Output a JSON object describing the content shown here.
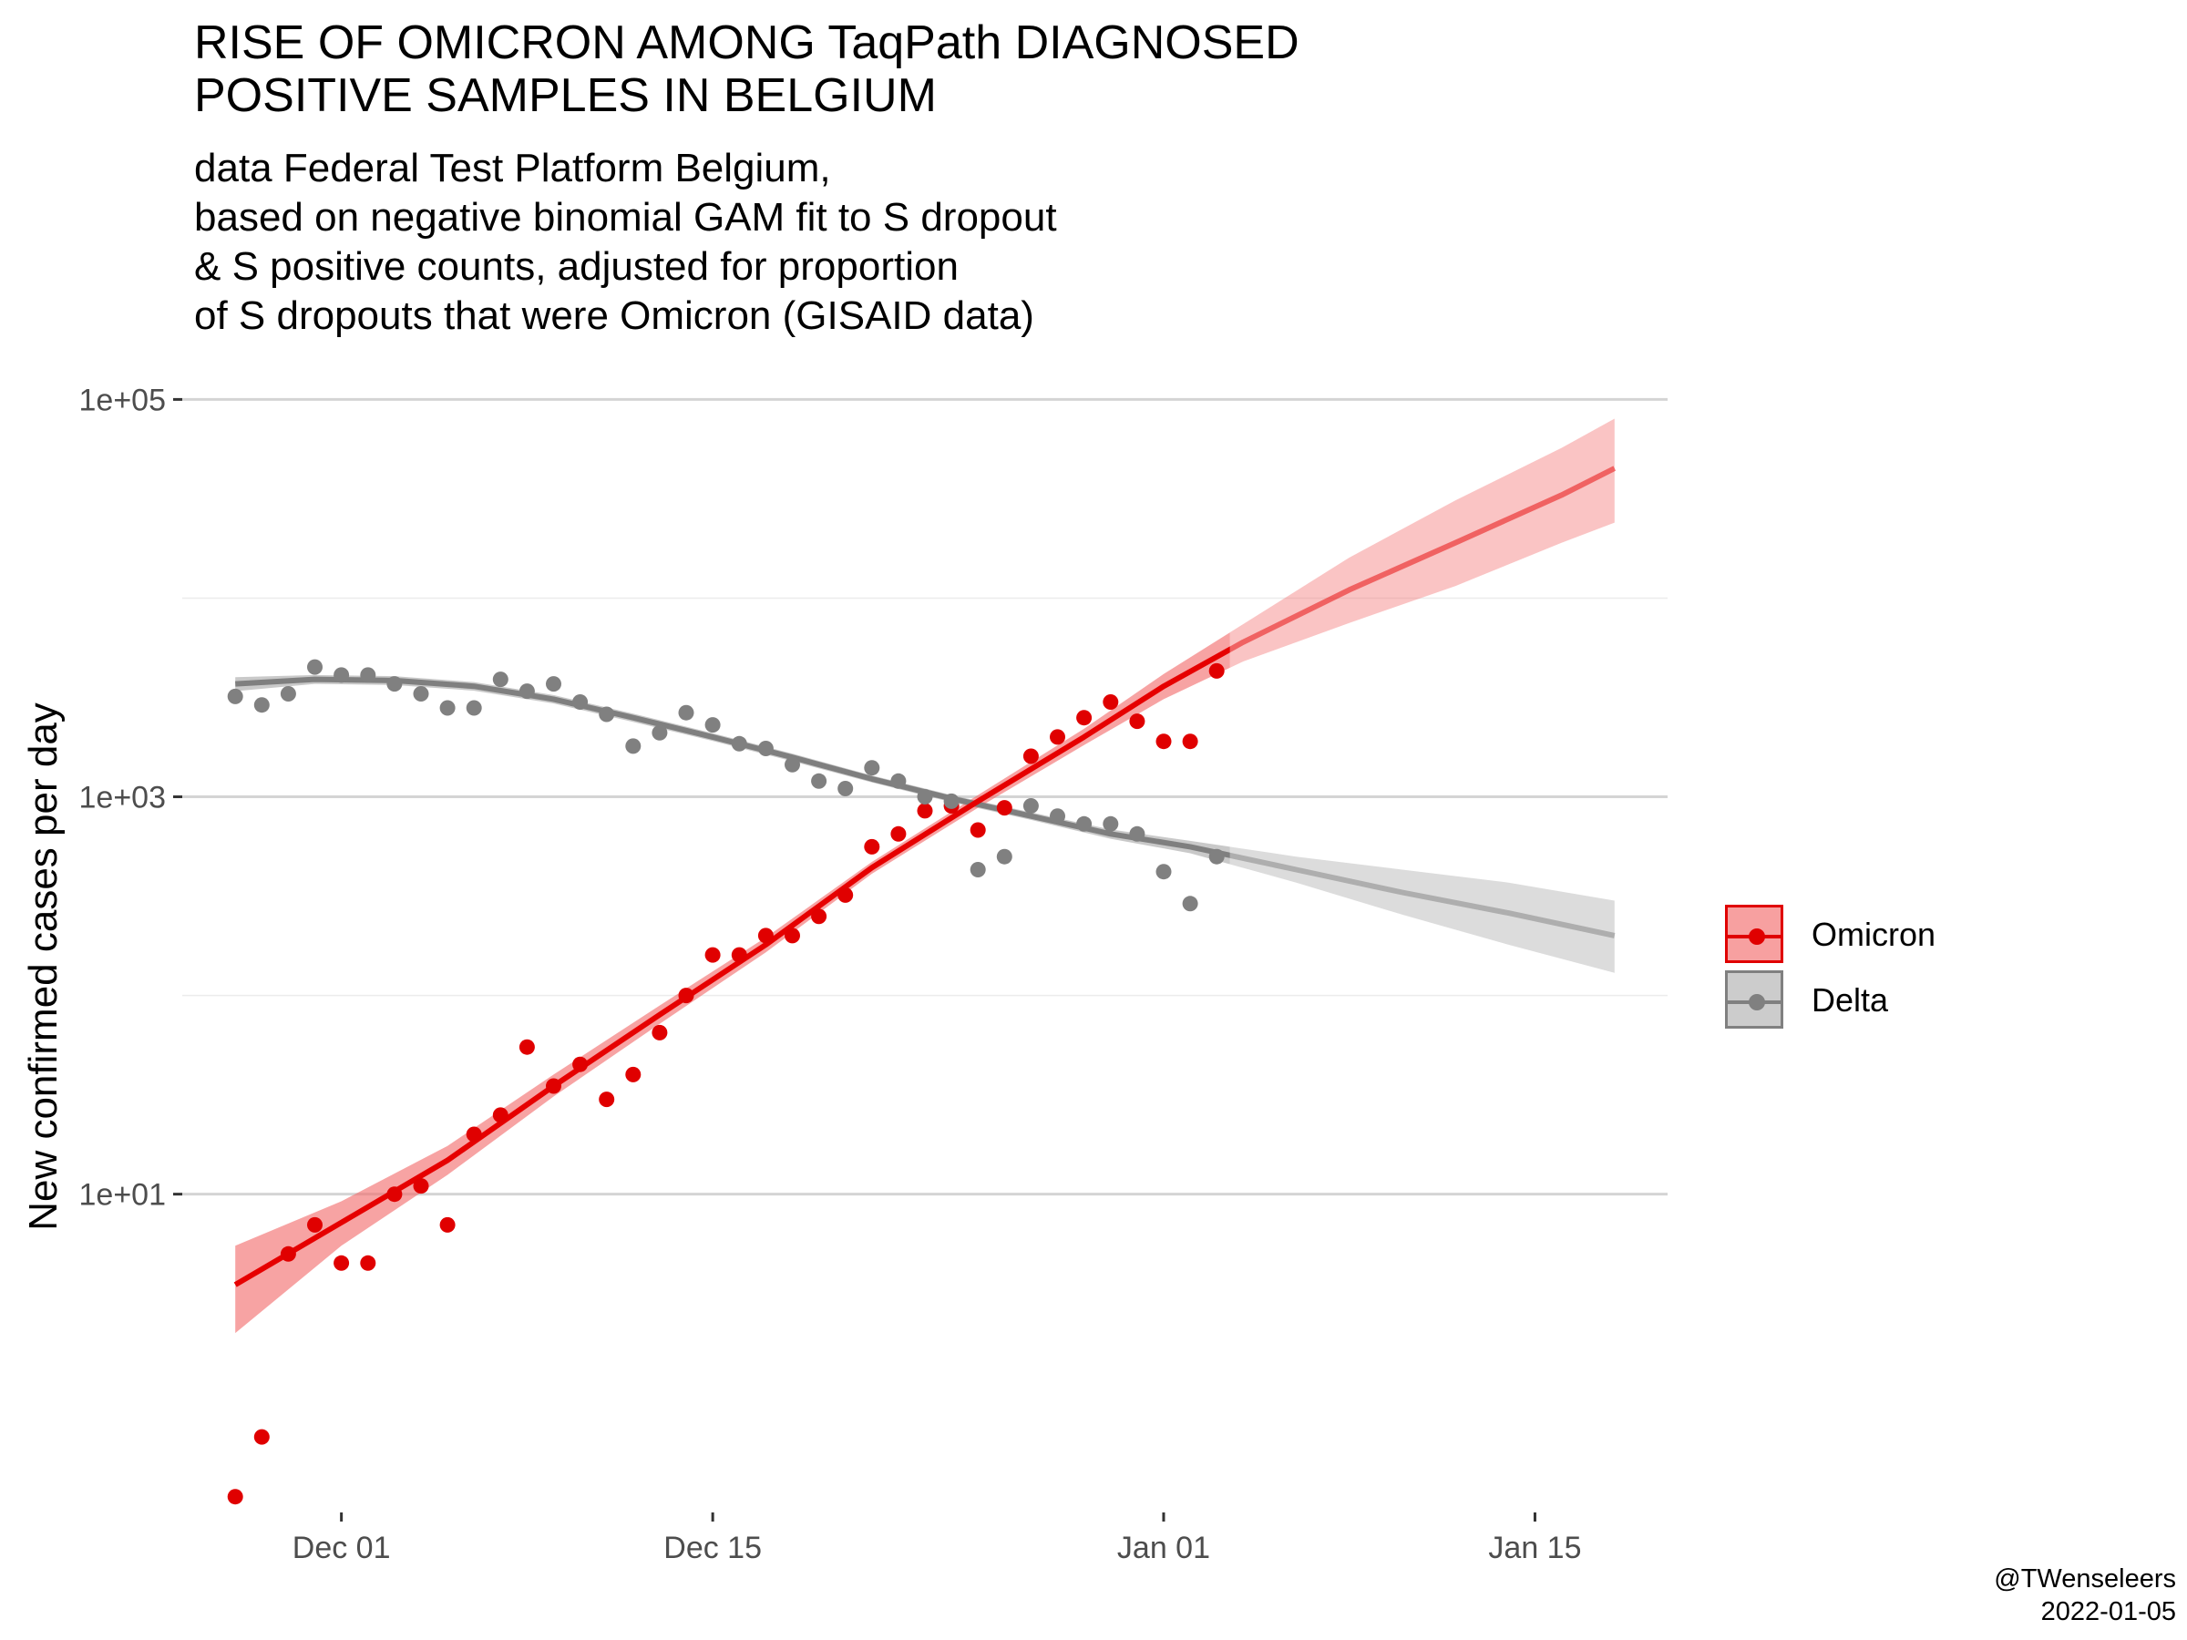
{
  "chart_data": {
    "type": "line",
    "title_lines": [
      "RISE OF OMICRON AMONG TaqPath DIAGNOSED",
      "POSITIVE SAMPLES IN BELGIUM"
    ],
    "subtitle_lines": [
      "data Federal Test Platform Belgium,",
      "based on negative binomial GAM fit to S dropout",
      "& S positive counts, adjusted for proportion",
      "of S dropouts that were Omicron (GISAID data)"
    ],
    "ylabel": "New confirmed cases per day",
    "y_scale": "log10",
    "y_range": [
      0.25,
      150000
    ],
    "y_ticks": [
      {
        "value": 10,
        "label": "1e+01"
      },
      {
        "value": 1000,
        "label": "1e+03"
      },
      {
        "value": 100000,
        "label": "1e+05"
      }
    ],
    "x_range": [
      "2021-11-25",
      "2022-01-20"
    ],
    "x_ticks": [
      {
        "value": "2021-12-01",
        "label": "Dec 01"
      },
      {
        "value": "2021-12-15",
        "label": "Dec 15"
      },
      {
        "value": "2022-01-01",
        "label": "Jan 01"
      },
      {
        "value": "2022-01-15",
        "label": "Jan 15"
      }
    ],
    "grid": "horizontal major and minor",
    "legend_position": "right",
    "series": [
      {
        "name": "Omicron",
        "color": "#e00000",
        "points": [
          [
            "2021-11-27",
            0.3
          ],
          [
            "2021-11-28",
            0.6
          ],
          [
            "2021-11-29",
            5
          ],
          [
            "2021-11-30",
            7
          ],
          [
            "2021-12-01",
            4.5
          ],
          [
            "2021-12-02",
            4.5
          ],
          [
            "2021-12-03",
            10
          ],
          [
            "2021-12-04",
            11
          ],
          [
            "2021-12-05",
            7
          ],
          [
            "2021-12-06",
            20
          ],
          [
            "2021-12-07",
            25
          ],
          [
            "2021-12-08",
            55
          ],
          [
            "2021-12-09",
            35
          ],
          [
            "2021-12-10",
            45
          ],
          [
            "2021-12-11",
            30
          ],
          [
            "2021-12-12",
            40
          ],
          [
            "2021-12-13",
            65
          ],
          [
            "2021-12-14",
            100
          ],
          [
            "2021-12-15",
            160
          ],
          [
            "2021-12-16",
            160
          ],
          [
            "2021-12-17",
            200
          ],
          [
            "2021-12-18",
            200
          ],
          [
            "2021-12-19",
            250
          ],
          [
            "2021-12-20",
            320
          ],
          [
            "2021-12-21",
            560
          ],
          [
            "2021-12-22",
            650
          ],
          [
            "2021-12-23",
            850
          ],
          [
            "2021-12-24",
            900
          ],
          [
            "2021-12-25",
            680
          ],
          [
            "2021-12-26",
            880
          ],
          [
            "2021-12-27",
            1600
          ],
          [
            "2021-12-28",
            2000
          ],
          [
            "2021-12-29",
            2500
          ],
          [
            "2021-12-30",
            3000
          ],
          [
            "2021-12-31",
            2400
          ],
          [
            "2022-01-01",
            1900
          ],
          [
            "2022-01-02",
            1900
          ],
          [
            "2022-01-03",
            4300
          ]
        ],
        "fit": [
          [
            "2021-11-27",
            3.5
          ],
          [
            "2021-12-01",
            7.2
          ],
          [
            "2021-12-05",
            14.8
          ],
          [
            "2021-12-09",
            35
          ],
          [
            "2021-12-13",
            80
          ],
          [
            "2021-12-17",
            180
          ],
          [
            "2021-12-21",
            440
          ],
          [
            "2021-12-25",
            950
          ],
          [
            "2021-12-29",
            2000
          ],
          [
            "2022-01-01",
            3600
          ],
          [
            "2022-01-04",
            6000
          ],
          [
            "2022-01-08",
            11000
          ],
          [
            "2022-01-12",
            19000
          ],
          [
            "2022-01-16",
            33000
          ],
          [
            "2022-01-18",
            45000
          ]
        ],
        "fit_lower": [
          [
            "2021-11-27",
            2.0
          ],
          [
            "2021-12-01",
            5.5
          ],
          [
            "2021-12-05",
            12.5
          ],
          [
            "2021-12-09",
            31
          ],
          [
            "2021-12-13",
            72
          ],
          [
            "2021-12-17",
            165
          ],
          [
            "2021-12-21",
            410
          ],
          [
            "2021-12-25",
            880
          ],
          [
            "2021-12-29",
            1820
          ],
          [
            "2022-01-01",
            3100
          ],
          [
            "2022-01-04",
            4800
          ],
          [
            "2022-01-08",
            7500
          ],
          [
            "2022-01-12",
            11500
          ],
          [
            "2022-01-16",
            19000
          ],
          [
            "2022-01-18",
            24000
          ]
        ],
        "fit_upper": [
          [
            "2021-11-27",
            5.5
          ],
          [
            "2021-12-01",
            9.2
          ],
          [
            "2021-12-05",
            17.5
          ],
          [
            "2021-12-09",
            40
          ],
          [
            "2021-12-13",
            89
          ],
          [
            "2021-12-17",
            196
          ],
          [
            "2021-12-21",
            470
          ],
          [
            "2021-12-25",
            1020
          ],
          [
            "2021-12-29",
            2200
          ],
          [
            "2022-01-01",
            4150
          ],
          [
            "2022-01-04",
            7400
          ],
          [
            "2022-01-08",
            16000
          ],
          [
            "2022-01-12",
            31000
          ],
          [
            "2022-01-16",
            57000
          ],
          [
            "2022-01-18",
            80000
          ]
        ]
      },
      {
        "name": "Delta",
        "color": "#808080",
        "points": [
          [
            "2021-11-27",
            3200
          ],
          [
            "2021-11-28",
            2900
          ],
          [
            "2021-11-29",
            3300
          ],
          [
            "2021-11-30",
            4500
          ],
          [
            "2021-12-01",
            4100
          ],
          [
            "2021-12-02",
            4100
          ],
          [
            "2021-12-03",
            3700
          ],
          [
            "2021-12-04",
            3300
          ],
          [
            "2021-12-05",
            2800
          ],
          [
            "2021-12-06",
            2800
          ],
          [
            "2021-12-07",
            3900
          ],
          [
            "2021-12-08",
            3400
          ],
          [
            "2021-12-09",
            3700
          ],
          [
            "2021-12-10",
            3000
          ],
          [
            "2021-12-11",
            2600
          ],
          [
            "2021-12-12",
            1800
          ],
          [
            "2021-12-13",
            2100
          ],
          [
            "2021-12-14",
            2650
          ],
          [
            "2021-12-15",
            2300
          ],
          [
            "2021-12-16",
            1850
          ],
          [
            "2021-12-17",
            1750
          ],
          [
            "2021-12-18",
            1450
          ],
          [
            "2021-12-19",
            1200
          ],
          [
            "2021-12-20",
            1100
          ],
          [
            "2021-12-21",
            1400
          ],
          [
            "2021-12-22",
            1200
          ],
          [
            "2021-12-23",
            1000
          ],
          [
            "2021-12-24",
            950
          ],
          [
            "2021-12-25",
            430
          ],
          [
            "2021-12-26",
            500
          ],
          [
            "2021-12-27",
            900
          ],
          [
            "2021-12-28",
            800
          ],
          [
            "2021-12-29",
            730
          ],
          [
            "2021-12-30",
            730
          ],
          [
            "2021-12-31",
            650
          ],
          [
            "2022-01-01",
            420
          ],
          [
            "2022-01-02",
            290
          ],
          [
            "2022-01-03",
            500
          ]
        ],
        "fit": [
          [
            "2021-11-27",
            3700
          ],
          [
            "2021-11-30",
            3900
          ],
          [
            "2021-12-03",
            3850
          ],
          [
            "2021-12-06",
            3600
          ],
          [
            "2021-12-09",
            3100
          ],
          [
            "2021-12-12",
            2500
          ],
          [
            "2021-12-15",
            2000
          ],
          [
            "2021-12-18",
            1580
          ],
          [
            "2021-12-21",
            1230
          ],
          [
            "2021-12-24",
            980
          ],
          [
            "2021-12-27",
            800
          ],
          [
            "2021-12-30",
            650
          ],
          [
            "2022-01-02",
            560
          ],
          [
            "2022-01-06",
            430
          ],
          [
            "2022-01-10",
            330
          ],
          [
            "2022-01-14",
            260
          ],
          [
            "2022-01-18",
            200
          ]
        ],
        "fit_lower": [
          [
            "2021-11-27",
            3400
          ],
          [
            "2021-11-30",
            3700
          ],
          [
            "2021-12-03",
            3650
          ],
          [
            "2021-12-06",
            3420
          ],
          [
            "2021-12-09",
            2950
          ],
          [
            "2021-12-12",
            2380
          ],
          [
            "2021-12-15",
            1910
          ],
          [
            "2021-12-18",
            1510
          ],
          [
            "2021-12-21",
            1180
          ],
          [
            "2021-12-24",
            940
          ],
          [
            "2021-12-27",
            765
          ],
          [
            "2021-12-30",
            615
          ],
          [
            "2022-01-02",
            520
          ],
          [
            "2022-01-06",
            370
          ],
          [
            "2022-01-10",
            255
          ],
          [
            "2022-01-14",
            180
          ],
          [
            "2022-01-18",
            130
          ]
        ],
        "fit_upper": [
          [
            "2021-11-27",
            4000
          ],
          [
            "2021-11-30",
            4100
          ],
          [
            "2021-12-03",
            4050
          ],
          [
            "2021-12-06",
            3780
          ],
          [
            "2021-12-09",
            3250
          ],
          [
            "2021-12-12",
            2620
          ],
          [
            "2021-12-15",
            2090
          ],
          [
            "2021-12-18",
            1650
          ],
          [
            "2021-12-21",
            1280
          ],
          [
            "2021-12-24",
            1020
          ],
          [
            "2021-12-27",
            835
          ],
          [
            "2021-12-30",
            685
          ],
          [
            "2022-01-02",
            600
          ],
          [
            "2022-01-06",
            500
          ],
          [
            "2022-01-10",
            430
          ],
          [
            "2022-01-14",
            370
          ],
          [
            "2022-01-18",
            300
          ]
        ]
      }
    ],
    "observed_until": "2022-01-03"
  },
  "legend": {
    "omicron": {
      "label": "Omicron",
      "color": "#e00000",
      "fill": "#f7a0a0"
    },
    "delta": {
      "label": "Delta",
      "color": "#808080",
      "fill": "#cccccc"
    }
  },
  "caption_lines": [
    "@TWenseleers",
    "2022-01-05"
  ]
}
